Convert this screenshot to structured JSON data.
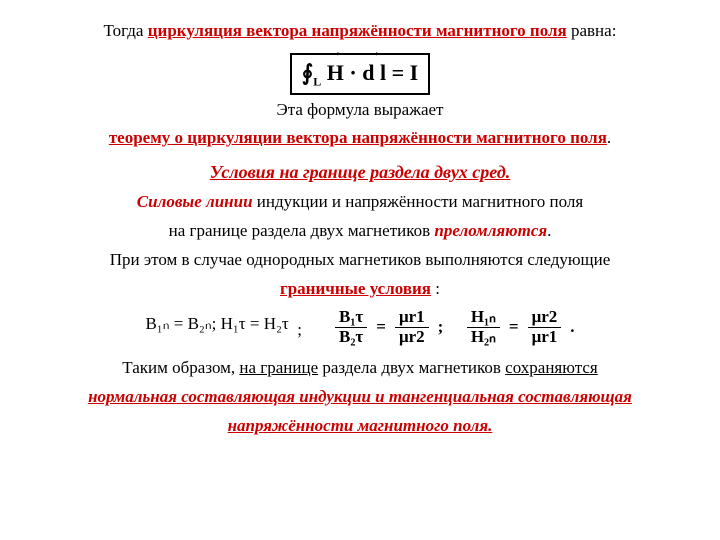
{
  "line1": {
    "pre": "Тогда  ",
    "highlight": "циркуляция вектора напряжённости магнитного поля",
    "post": "  равна:"
  },
  "formula": {
    "integral": "∮",
    "sub": "L",
    "H": "H",
    "dot": "·",
    "dl": "d l",
    "eq": " = I"
  },
  "line2": "Эта формула выражает",
  "line3": {
    "pre": "теорему о циркуляции вектора напряжённости магнитного поля",
    "dot": "."
  },
  "section": "Условия на границе раздела двух сред.",
  "para1": {
    "a": "Силовые линии",
    "b": " индукции и напряжённости магнитного поля",
    "c": "на границе раздела двух магнетиков ",
    "d": "преломляются",
    "e": ".",
    "f": "При этом в случае однородных магнетиков выполняются следующие",
    "g": "граничные условия",
    "h": " :"
  },
  "eq": {
    "left": "B₁ₙ = B₂ₙ;   H₁τ = H₂τ",
    "semicolon": ";",
    "f1": {
      "num": "B₁τ",
      "den": "B₂τ"
    },
    "f2": {
      "num": "μr1",
      "den": "μr2"
    },
    "f3": {
      "num": "H₁ₙ",
      "den": "H₂ₙ"
    },
    "f4": {
      "num": "μr2",
      "den": "μr1"
    },
    "eqs": "=",
    "sep": ";",
    "dot": "."
  },
  "para2": {
    "a": "Таким образом, ",
    "b": "на границе",
    "c": " раздела двух магнетиков ",
    "d": "сохраняются",
    "e": "нормальная составляющая индукции и тангенциальная составляющая",
    "f": "напряжённости магнитного поля."
  },
  "colors": {
    "text": "#000000",
    "accent": "#cc0000",
    "bg": "#ffffff"
  }
}
